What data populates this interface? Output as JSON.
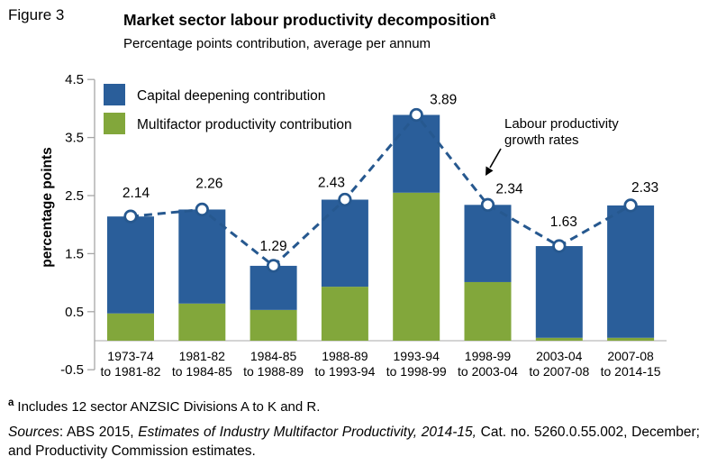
{
  "header": {
    "figure_label": "Figure 3",
    "title": "Market sector labour productivity decomposition",
    "title_superscript": "a",
    "subtitle": "Percentage points contribution, average per annum"
  },
  "chart_data": {
    "type": "bar",
    "stacked": true,
    "title": "Market sector labour productivity decomposition",
    "subtitle": "Percentage points contribution, average per annum",
    "ylabel": "percentage points",
    "xlabel": "",
    "ylim": [
      -0.5,
      4.5
    ],
    "yticks": [
      4.5,
      3.5,
      2.5,
      1.5,
      0.5,
      -0.5
    ],
    "grid": false,
    "legend_position": "top-left-inside",
    "categories": [
      [
        "1973-74",
        "to 1981-82"
      ],
      [
        "1981-82",
        "to 1984-85"
      ],
      [
        "1984-85",
        "to 1988-89"
      ],
      [
        "1988-89",
        "to 1993-94"
      ],
      [
        "1993-94",
        "to 1998-99"
      ],
      [
        "1998-99",
        "to 2003-04"
      ],
      [
        "2003-04",
        "to 2007-08"
      ],
      [
        "2007-08",
        "to 2014-15"
      ]
    ],
    "series": [
      {
        "name": "Capital deepening contribution",
        "color": "#2A5E9A",
        "values": [
          1.67,
          1.62,
          0.76,
          1.5,
          1.34,
          1.33,
          1.58,
          2.28
        ]
      },
      {
        "name": "Multifactor productivity contribution",
        "color": "#82A73B",
        "values": [
          0.47,
          0.64,
          0.53,
          0.93,
          2.55,
          1.01,
          0.05,
          0.05
        ]
      }
    ],
    "line_series": {
      "name": "Labour productivity growth rates",
      "color": "#26588F",
      "style": "dashed",
      "marker": "circle",
      "values": [
        2.14,
        2.26,
        1.29,
        2.43,
        3.89,
        2.34,
        1.63,
        2.33
      ]
    },
    "data_labels": [
      "2.14",
      "2.26",
      "1.29",
      "2.43",
      "3.89",
      "2.34",
      "1.63",
      "2.33"
    ],
    "annotation": {
      "lines": [
        "Labour productivity",
        "growth rates"
      ]
    },
    "axis_color": "#A6A6A6",
    "baseline_color": "#C6C6C6"
  },
  "footnotes": {
    "marker": "a",
    "note_a": "Includes 12 sector ANZSIC Divisions A to K and R.",
    "sources_label": "Sources",
    "sources_mid": ": ABS 2015, ",
    "sources_italic": "Estimates of Industry Multifactor Productivity, 2014-15,",
    "sources_end": " Cat. no. 5260.0.55.002, December; and Productivity Commission estimates."
  }
}
